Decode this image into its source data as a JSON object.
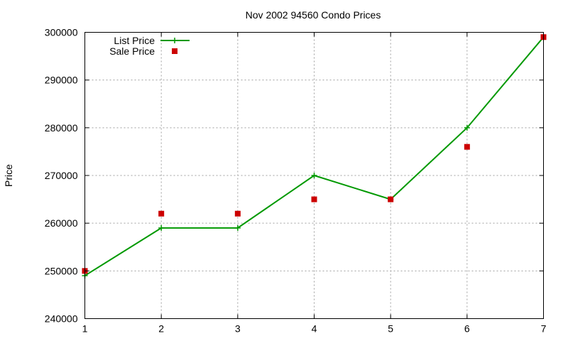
{
  "chart_data": {
    "type": "line",
    "title": "Nov 2002 94560 Condo Prices",
    "xlabel": "",
    "ylabel": "Price",
    "xlim": [
      1,
      7
    ],
    "ylim": [
      240000,
      300000
    ],
    "xticks": [
      1,
      2,
      3,
      4,
      5,
      6,
      7
    ],
    "yticks": [
      240000,
      250000,
      260000,
      270000,
      280000,
      290000,
      300000
    ],
    "grid": true,
    "legend_position": "top-left",
    "series": [
      {
        "name": "List Price",
        "style": "line-with-plus-markers",
        "color": "#009900",
        "x": [
          1,
          2,
          3,
          4,
          5,
          6,
          7
        ],
        "values": [
          249000,
          259000,
          259000,
          270000,
          265000,
          280000,
          299000
        ]
      },
      {
        "name": "Sale Price",
        "style": "square-points",
        "color": "#cc0000",
        "x": [
          1,
          2,
          3,
          4,
          5,
          6,
          7
        ],
        "values": [
          250000,
          262000,
          262000,
          265000,
          265000,
          276000,
          299000
        ]
      }
    ]
  }
}
